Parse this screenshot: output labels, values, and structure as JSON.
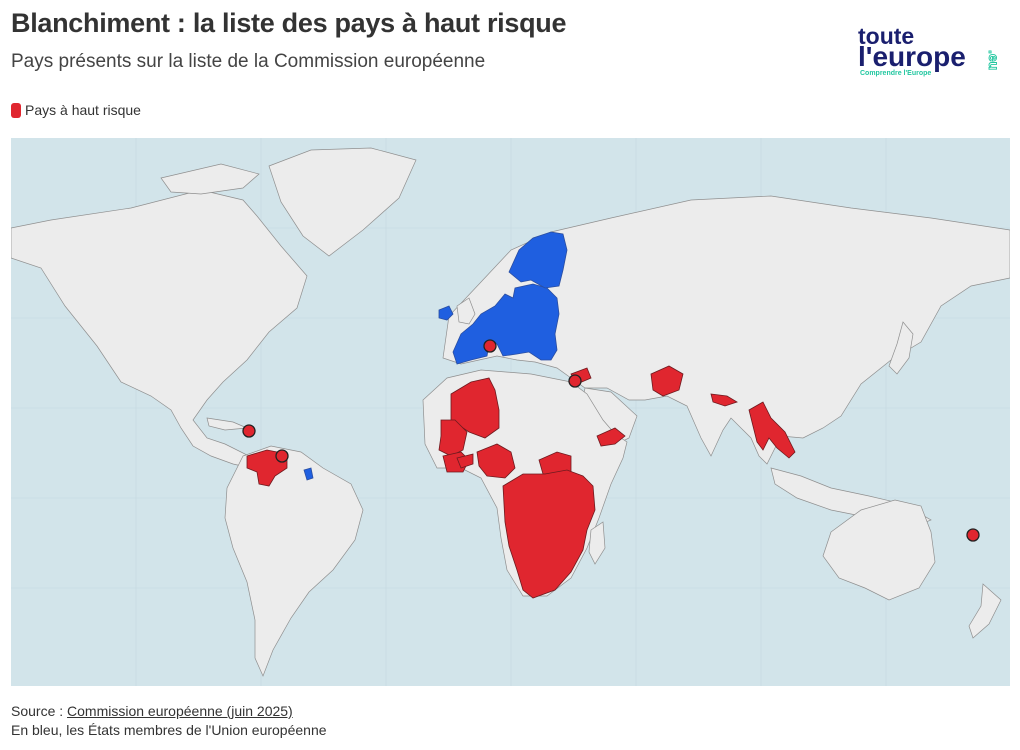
{
  "title": "Blanchiment : la liste des pays à haut risque",
  "subtitle": "Pays présents sur la liste de la Commission européenne",
  "legend": {
    "label": "Pays à haut risque",
    "color": "#e0262f"
  },
  "logo": {
    "line1": "toute",
    "line2": "l'europe",
    "tagline": "Comprendre l'Europe",
    "domain": ".eu",
    "text_color": "#1a1f6e",
    "accent": "#22c7a0"
  },
  "map": {
    "colors": {
      "ocean": "#d2e4ea",
      "land": "#ececec",
      "eu": "#1f5fe0",
      "high_risk": "#e0262f"
    },
    "eu_member_states": "États membres de l'Union européenne",
    "high_risk_regions": [
      "Venezuela",
      "Haïti",
      "Trinité-et-Tobago",
      "Monaco",
      "Syrie",
      "Liban",
      "Algérie",
      "Mali",
      "Burkina Faso",
      "Nigeria",
      "Cameroun",
      "Soudan du Sud",
      "Côte d'Ivoire",
      "RD Congo",
      "Angola",
      "Namibie",
      "Afrique du Sud",
      "Kenya",
      "Tanzanie",
      "Mozambique",
      "Yémen",
      "Afghanistan",
      "Népal",
      "Myanmar",
      "Laos",
      "Vanuatu"
    ]
  },
  "footer": {
    "source_prefix": "Source : ",
    "source_link": "Commission européenne (juin 2025)",
    "note": "En bleu, les États membres de l'Union européenne"
  }
}
